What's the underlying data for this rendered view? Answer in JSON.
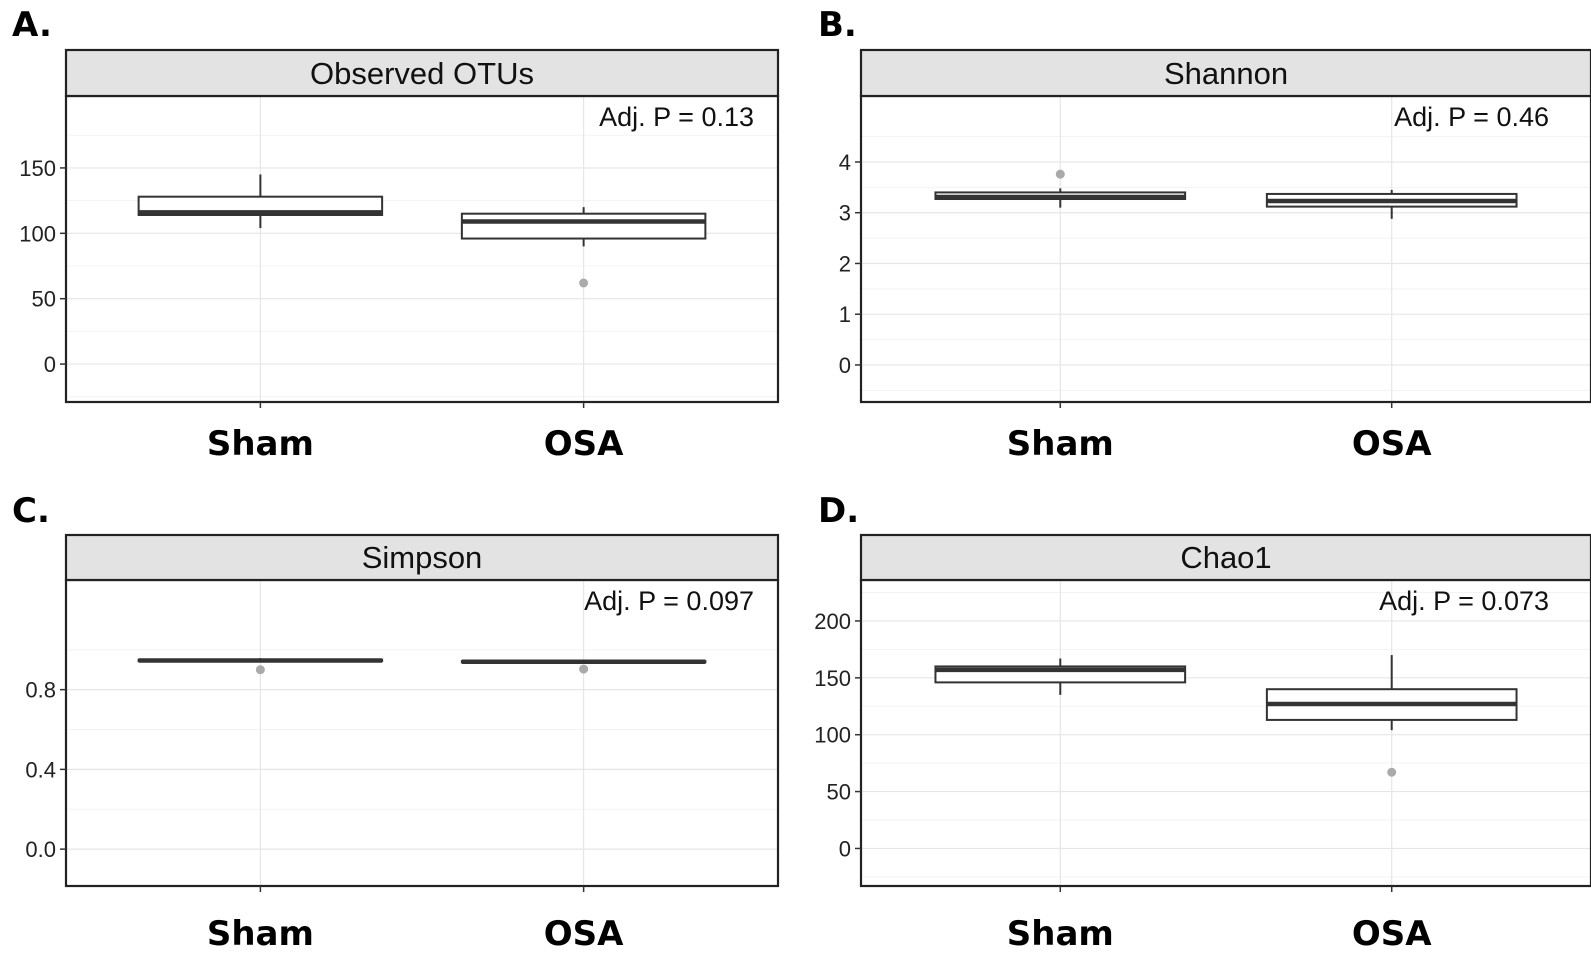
{
  "chart_data": [
    {
      "type": "box",
      "panel_label": "A.",
      "title": "Observed OTUs",
      "categories": [
        "Sham",
        "OSA"
      ],
      "yticks": [
        0,
        50,
        100,
        150
      ],
      "ytick_labels": [
        "0",
        "50",
        "100",
        "150"
      ],
      "ylim": [
        -29,
        205
      ],
      "annotation": "Adj. P =  0.13",
      "boxes": [
        {
          "category": "Sham",
          "whisker_low": 104,
          "q1": 114,
          "median": 116,
          "q3": 128,
          "whisker_high": 145,
          "outliers": []
        },
        {
          "category": "OSA",
          "whisker_low": 90,
          "q1": 96,
          "median": 109,
          "q3": 115,
          "whisker_high": 120,
          "outliers": [
            62
          ]
        }
      ]
    },
    {
      "type": "box",
      "panel_label": "B.",
      "title": "Shannon",
      "categories": [
        "Sham",
        "OSA"
      ],
      "yticks": [
        0,
        1,
        2,
        3,
        4
      ],
      "ytick_labels": [
        "0",
        "1",
        "2",
        "3",
        "4"
      ],
      "ylim": [
        -0.73,
        5.3
      ],
      "annotation": "Adj. P =  0.46",
      "boxes": [
        {
          "category": "Sham",
          "whisker_low": 3.1,
          "q1": 3.27,
          "median": 3.31,
          "q3": 3.4,
          "whisker_high": 3.48,
          "outliers": [
            3.76
          ]
        },
        {
          "category": "OSA",
          "whisker_low": 2.88,
          "q1": 3.12,
          "median": 3.23,
          "q3": 3.37,
          "whisker_high": 3.45,
          "outliers": []
        }
      ]
    },
    {
      "type": "box",
      "panel_label": "C.",
      "title": "Simpson",
      "categories": [
        "Sham",
        "OSA"
      ],
      "yticks": [
        0.0,
        0.4,
        0.8
      ],
      "ytick_labels": [
        "0.0",
        "0.4",
        "0.8"
      ],
      "ylim": [
        -0.185,
        1.35
      ],
      "annotation": "Adj. P =  0.097",
      "boxes": [
        {
          "category": "Sham",
          "whisker_low": 0.94,
          "q1": 0.943,
          "median": 0.946,
          "q3": 0.95,
          "whisker_high": 0.958,
          "outliers": [
            0.9
          ]
        },
        {
          "category": "OSA",
          "whisker_low": 0.935,
          "q1": 0.937,
          "median": 0.94,
          "q3": 0.943,
          "whisker_high": 0.948,
          "outliers": [
            0.903
          ]
        }
      ]
    },
    {
      "type": "box",
      "panel_label": "D.",
      "title": "Chao1",
      "categories": [
        "Sham",
        "OSA"
      ],
      "yticks": [
        0,
        50,
        100,
        150,
        200
      ],
      "ytick_labels": [
        "0",
        "50",
        "100",
        "150",
        "200"
      ],
      "ylim": [
        -33,
        236
      ],
      "annotation": "Adj. P =  0.073",
      "boxes": [
        {
          "category": "Sham",
          "whisker_low": 135,
          "q1": 146,
          "median": 157,
          "q3": 160,
          "whisker_high": 167,
          "outliers": []
        },
        {
          "category": "OSA",
          "whisker_low": 104,
          "q1": 113,
          "median": 127,
          "q3": 140,
          "whisker_high": 170,
          "outliers": [
            67
          ]
        }
      ]
    }
  ]
}
